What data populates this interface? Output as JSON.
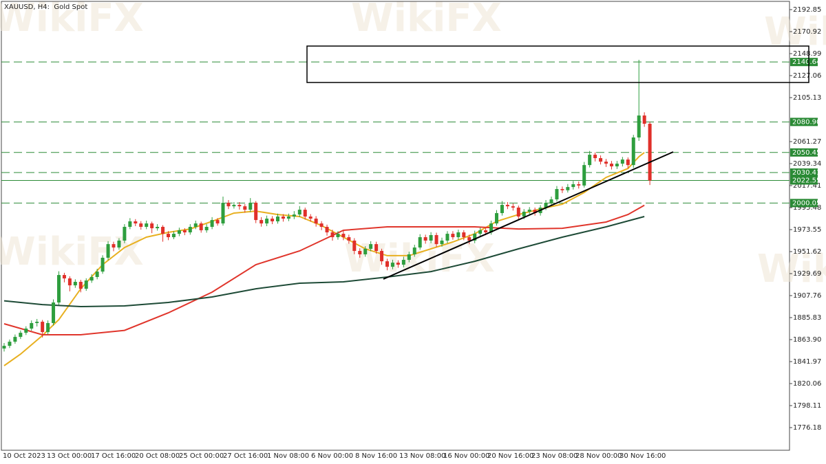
{
  "chart_data": {
    "type": "candlestick",
    "title": "XAUUSD, H4:  Gold Spot",
    "watermark": "WikiFX",
    "ylim": [
      1753.6,
      2199.7
    ],
    "yticks": [
      2192.85,
      2170.92,
      2148.99,
      2127.06,
      2105.13,
      2061.27,
      2039.34,
      2017.41,
      1995.48,
      1973.55,
      1951.62,
      1929.69,
      1907.76,
      1885.83,
      {
        "value": 1863.9,
        "label": "1863.90"
      },
      1841.97,
      1820.06,
      1798.11,
      1776.18
    ],
    "x_labels": [
      "10 Oct 2023",
      "13 Oct 00:00",
      "17 Oct 16:00",
      "20 Oct 08:00",
      "25 Oct 00:00",
      "27 Oct 16:00",
      "1 Nov 08:00",
      "6 Nov 00:00",
      "8 Nov 16:00",
      "13 Nov 08:00",
      "16 Nov 00:00",
      "20 Nov 16:00",
      "23 Nov 08:00",
      "28 Nov 00:00",
      "30 Nov 16:00"
    ],
    "up_color": "#2e9e3e",
    "down_color": "#e0302a",
    "open": [
      1855.0,
      1857.7,
      1861.8,
      1866.6,
      1870.7,
      1874.9,
      1880.4,
      1881.7,
      1871.4,
      1880.4,
      1900.9,
      1928.3,
      1924.9,
      1918.0,
      1921.5,
      1914.6,
      1922.8,
      1926.3,
      1931.7,
      1945.5,
      1959.1,
      1955.7,
      1962.6,
      1976.3,
      1981.8,
      1979.7,
      1976.3,
      1979.7,
      1974.9,
      1976.3,
      1969.4,
      1966.0,
      1969.4,
      1972.9,
      1970.8,
      1976.3,
      1979.7,
      1972.9,
      1976.3,
      1983.1,
      1979.7,
      2000.3,
      1996.8,
      1998.2,
      1996.8,
      1993.4,
      2000.3,
      1983.1,
      1979.7,
      1984.5,
      1981.8,
      1986.6,
      1984.5,
      1986.6,
      1988.6,
      1993.4,
      1986.6,
      1984.5,
      1979.7,
      1976.3,
      1970.8,
      1966.0,
      1969.4,
      1966.0,
      1962.6,
      1952.3,
      1948.9,
      1954.4,
      1959.1,
      1952.3,
      1942.0,
      1936.5,
      1940.6,
      1938.6,
      1943.4,
      1948.9,
      1955.7,
      1966.0,
      1962.6,
      1968.1,
      1959.1,
      1962.6,
      1969.4,
      1966.0,
      1970.8,
      1966.0,
      1962.6,
      1969.4,
      1972.9,
      1970.8,
      1979.7,
      1990.0,
      1998.2,
      1996.8,
      1995.5,
      1986.6,
      1991.4,
      1993.4,
      1990.0,
      1995.5,
      2000.3,
      2003.7,
      2014.0,
      2012.8,
      2016.0,
      2018.8,
      2017.5,
      2037.9,
      2048.2,
      2044.8,
      2041.3,
      2039.3,
      2036.6,
      2039.3,
      2043.4,
      2037.9,
      2065.4,
      2087.3,
      2079.1
    ],
    "high": [
      1860.5,
      1864.0,
      1869.0,
      1873.0,
      1877.2,
      1883.0,
      1884.5,
      1883.5,
      1883.0,
      1904.0,
      1932.0,
      1930.5,
      1927.0,
      1924.0,
      1923.5,
      1925.0,
      1929.0,
      1934.5,
      1948.0,
      1962.0,
      1961.5,
      1965.0,
      1979.0,
      1985.0,
      1984.0,
      1982.0,
      1982.5,
      1981.5,
      1979.0,
      1978.0,
      1972.0,
      1972.0,
      1975.5,
      1975.0,
      1979.0,
      1982.5,
      1981.5,
      1979.0,
      1986.0,
      1985.0,
      2006.5,
      2003.0,
      2001.0,
      2001.0,
      1999.0,
      2005.0,
      2002.0,
      1986.0,
      1987.5,
      1987.0,
      1989.5,
      1989.0,
      1989.5,
      1992.0,
      1997.0,
      1995.5,
      1989.0,
      1987.0,
      1982.0,
      1978.5,
      1973.5,
      1972.0,
      1972.5,
      1968.5,
      1965.0,
      1955.0,
      1957.0,
      1962.0,
      1961.5,
      1954.5,
      1944.5,
      1943.5,
      1943.0,
      1946.5,
      1951.5,
      1958.5,
      1969.0,
      1968.5,
      1971.0,
      1970.5,
      1965.5,
      1972.0,
      1972.0,
      1973.5,
      1973.0,
      1968.5,
      1972.5,
      1975.5,
      1975.0,
      1982.5,
      1993.0,
      2002.0,
      2001.0,
      1999.5,
      1997.5,
      1994.0,
      1996.0,
      1995.5,
      1998.0,
      2003.0,
      2006.5,
      2017.0,
      2016.5,
      2019.0,
      2022.0,
      2021.5,
      2041.0,
      2052.0,
      2050.5,
      2047.5,
      2044.0,
      2042.0,
      2042.0,
      2046.0,
      2045.5,
      2068.0,
      2142.8,
      2090.5,
      2081.0
    ],
    "low": [
      1852.0,
      1855.5,
      1859.8,
      1864.5,
      1868.5,
      1872.8,
      1877.0,
      1866.0,
      1869.0,
      1878.0,
      1898.5,
      1921.0,
      1912.0,
      1915.5,
      1911.0,
      1912.5,
      1920.5,
      1924.0,
      1929.5,
      1943.0,
      1952.0,
      1953.5,
      1960.0,
      1974.0,
      1977.0,
      1973.5,
      1974.0,
      1970.0,
      1972.5,
      1961.5,
      1963.0,
      1964.0,
      1967.0,
      1968.0,
      1968.5,
      1974.0,
      1970.5,
      1970.5,
      1974.0,
      1977.5,
      1977.5,
      1994.0,
      1994.5,
      1993.5,
      1990.5,
      1991.0,
      1980.0,
      1976.5,
      1977.0,
      1979.0,
      1979.5,
      1981.5,
      1982.0,
      1984.0,
      1986.0,
      1983.5,
      1981.5,
      1976.5,
      1973.0,
      1967.5,
      1962.5,
      1963.5,
      1963.0,
      1959.5,
      1949.0,
      1945.5,
      1946.5,
      1952.0,
      1949.5,
      1938.5,
      1933.0,
      1934.0,
      1935.5,
      1936.0,
      1941.0,
      1946.5,
      1953.5,
      1959.5,
      1960.0,
      1956.0,
      1956.5,
      1960.0,
      1963.5,
      1963.5,
      1963.0,
      1959.0,
      1960.0,
      1967.0,
      1968.0,
      1968.5,
      1977.5,
      1987.5,
      1994.0,
      1992.5,
      1983.5,
      1984.0,
      1989.0,
      1987.5,
      1987.5,
      1993.0,
      1998.0,
      2001.5,
      2010.0,
      2010.5,
      2013.5,
      2014.5,
      2015.5,
      2035.5,
      2041.5,
      2038.5,
      2036.0,
      2033.5,
      2034.0,
      2036.5,
      2034.5,
      2035.0,
      2062.0,
      2076.0,
      2018.0
    ],
    "close": [
      1857.7,
      1861.8,
      1866.6,
      1870.7,
      1874.9,
      1880.4,
      1881.7,
      1871.4,
      1880.4,
      1900.9,
      1928.3,
      1924.9,
      1918.0,
      1921.5,
      1914.6,
      1922.8,
      1926.3,
      1931.7,
      1945.5,
      1959.1,
      1955.7,
      1962.6,
      1976.3,
      1981.8,
      1979.7,
      1976.3,
      1979.7,
      1974.9,
      1976.3,
      1969.4,
      1966.0,
      1969.4,
      1972.9,
      1970.8,
      1976.3,
      1979.7,
      1972.9,
      1976.3,
      1983.1,
      1979.7,
      2000.3,
      1996.8,
      1998.2,
      1996.8,
      1993.4,
      2000.3,
      1983.1,
      1979.7,
      1984.5,
      1981.8,
      1986.6,
      1984.5,
      1986.6,
      1988.6,
      1993.4,
      1986.6,
      1984.5,
      1979.7,
      1976.3,
      1970.8,
      1966.0,
      1969.4,
      1966.0,
      1962.6,
      1952.3,
      1948.9,
      1954.4,
      1959.1,
      1952.3,
      1942.0,
      1936.5,
      1940.6,
      1938.6,
      1943.4,
      1948.9,
      1955.7,
      1966.0,
      1962.6,
      1968.1,
      1959.1,
      1962.6,
      1969.4,
      1966.0,
      1970.8,
      1966.0,
      1962.6,
      1969.4,
      1972.9,
      1970.8,
      1979.7,
      1990.0,
      1998.2,
      1996.8,
      1995.5,
      1986.6,
      1991.4,
      1993.4,
      1990.0,
      1995.5,
      2000.3,
      2003.7,
      2014.0,
      2012.8,
      2016.0,
      2018.8,
      2017.5,
      2037.9,
      2048.2,
      2044.8,
      2041.3,
      2039.3,
      2036.6,
      2039.3,
      2043.4,
      2037.9,
      2065.4,
      2087.3,
      2079.1,
      2022.55
    ],
    "moving_averages": [
      {
        "color": "#e8b020",
        "x": [
          0,
          3,
          7,
          10,
          14,
          18,
          22,
          26,
          30,
          34,
          38,
          42,
          46,
          50,
          54,
          58,
          62,
          66,
          70,
          74,
          78,
          82,
          86,
          90,
          94,
          98,
          102,
          106,
          110,
          114,
          116,
          117
        ],
        "values": [
          1837.9,
          1849.5,
          1868.0,
          1883.8,
          1914.6,
          1938.6,
          1955.7,
          1966.0,
          1970.8,
          1974.2,
          1981.8,
          1990.0,
          1992.0,
          1988.6,
          1986.6,
          1977.6,
          1966.0,
          1954.4,
          1947.6,
          1947.6,
          1954.4,
          1961.2,
          1969.4,
          1981.8,
          1988.6,
          1994.1,
          1998.9,
          2010.6,
          2025.6,
          2034.5,
          2046.2,
          2050.4
        ]
      },
      {
        "color": "#e0352b",
        "x": [
          0,
          7,
          14,
          22,
          30,
          38,
          46,
          54,
          62,
          70,
          78,
          86,
          94,
          102,
          110,
          114,
          117
        ],
        "values": [
          1879.7,
          1868.7,
          1868.7,
          1873.1,
          1890.6,
          1911.2,
          1938.6,
          1952.3,
          1972.9,
          1976.3,
          1976.3,
          1976.3,
          1974.2,
          1974.9,
          1981.1,
          1988.6,
          1997.8
        ]
      },
      {
        "color": "#1d4a36",
        "x": [
          0,
          7,
          14,
          22,
          30,
          38,
          46,
          54,
          62,
          70,
          78,
          86,
          94,
          102,
          110,
          117
        ],
        "values": [
          1902.6,
          1898.8,
          1896.8,
          1897.5,
          1900.9,
          1906.4,
          1914.6,
          1920.1,
          1921.5,
          1926.3,
          1931.7,
          1942.0,
          1954.4,
          1966.0,
          1976.3,
          1986.6
        ]
      }
    ],
    "levels": [
      2140.64,
      {
        "value": 2080.9,
        "label": "2080.90"
      },
      2050.45,
      2030.41,
      2000.05
    ],
    "level_color": "#2a8a35",
    "last_price": 2022.55
  }
}
